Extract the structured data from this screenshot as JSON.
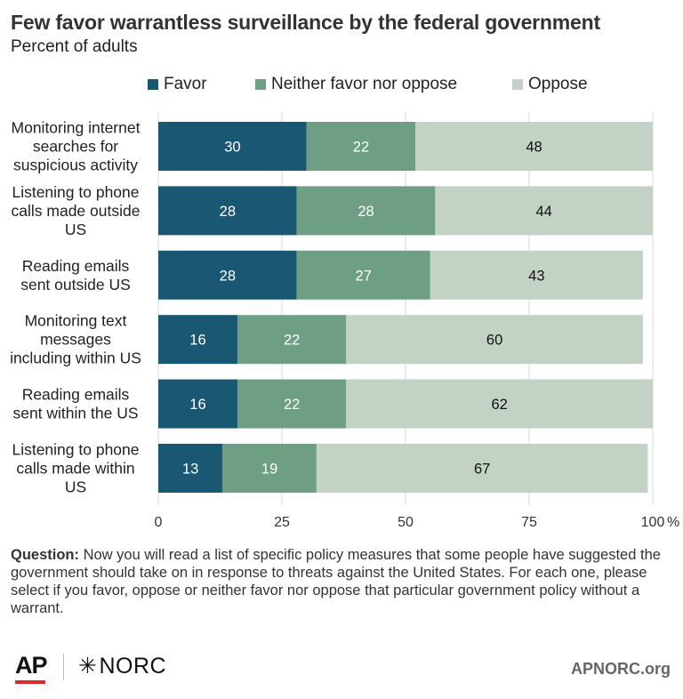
{
  "title": "Few favor warrantless surveillance by the federal government",
  "subtitle": "Percent of adults",
  "colors": {
    "favor": "#1a5773",
    "neither": "#6e9f85",
    "oppose": "#c2d3c6",
    "gridline": "#d9d9d9"
  },
  "chart_data": {
    "type": "bar",
    "orientation": "horizontal",
    "stacked": true,
    "categories": [
      [
        "Monitoring internet",
        "searches for",
        "suspicious activity"
      ],
      [
        "Listening to phone",
        "calls made outside",
        "US"
      ],
      [
        "Reading emails",
        "sent outside US"
      ],
      [
        "Monitoring text",
        "messages",
        "including within US"
      ],
      [
        "Reading emails",
        "sent within the US"
      ],
      [
        "Listening to phone",
        "calls made within",
        "US"
      ]
    ],
    "series": [
      {
        "name": "Favor",
        "color": "#1a5773",
        "label_color": "#ffffff",
        "values": [
          30,
          28,
          28,
          16,
          16,
          13
        ]
      },
      {
        "name": "Neither favor nor oppose",
        "color": "#6e9f85",
        "label_color": "#ffffff",
        "values": [
          22,
          28,
          27,
          22,
          22,
          19
        ]
      },
      {
        "name": "Oppose",
        "color": "#c2d3c6",
        "label_color": "#111111",
        "values": [
          48,
          44,
          43,
          60,
          62,
          67
        ]
      }
    ],
    "xlim": [
      0,
      100
    ],
    "xticks": [
      "0",
      "25",
      "50",
      "75",
      "100"
    ],
    "x_unit": "%",
    "grid": true,
    "legend_position": "top"
  },
  "question": {
    "label": "Question:",
    "text": " Now you will read a list of specific policy measures that some people have suggested the government should take on in response to threats against the United States. For each one, please select if you favor, oppose or neither favor nor oppose that particular government policy without a warrant."
  },
  "footer": {
    "ap_logo": "AP",
    "norc_star": "✳",
    "norc_logo": "NORC",
    "site": "APNORC.org"
  }
}
